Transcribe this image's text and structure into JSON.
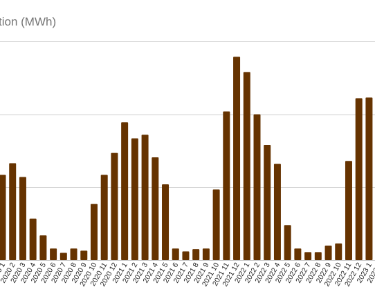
{
  "chart_data": {
    "type": "bar",
    "title": "tion (MWh)",
    "xlabel": "",
    "ylabel": "",
    "ylim": [
      0,
      3
    ],
    "grid": true,
    "bar_color": "#663300",
    "grid_color": "#cccccc",
    "categories": [
      "2020 1",
      "2020 2",
      "2020 3",
      "2020 4",
      "2020 5",
      "2020 6",
      "2020 7",
      "2020 8",
      "2020 9",
      "2020 10",
      "2020 11",
      "2020 12",
      "2021 1",
      "2021 2",
      "2021 3",
      "2021 4",
      "2021 5",
      "2021 6",
      "2021 7",
      "2021 8",
      "2021 9",
      "2021 10",
      "2021 11",
      "2021 12",
      "2022 1",
      "2022 2",
      "2022 3",
      "2022 4",
      "2022 5",
      "2022 6",
      "2022 7",
      "2022 8",
      "2022 9",
      "2022 10",
      "2022 11",
      "2022 12",
      "2023 1",
      "2023 2"
    ],
    "values": [
      1.17,
      1.33,
      1.14,
      0.57,
      0.34,
      0.16,
      0.1,
      0.16,
      0.13,
      0.77,
      1.17,
      1.47,
      1.89,
      1.67,
      1.72,
      1.41,
      1.04,
      0.16,
      0.12,
      0.15,
      0.16,
      0.97,
      2.04,
      2.79,
      2.58,
      2.0,
      1.58,
      1.32,
      0.48,
      0.16,
      0.11,
      0.11,
      0.2,
      0.23,
      1.36,
      2.22,
      2.23,
      2.3
    ]
  }
}
